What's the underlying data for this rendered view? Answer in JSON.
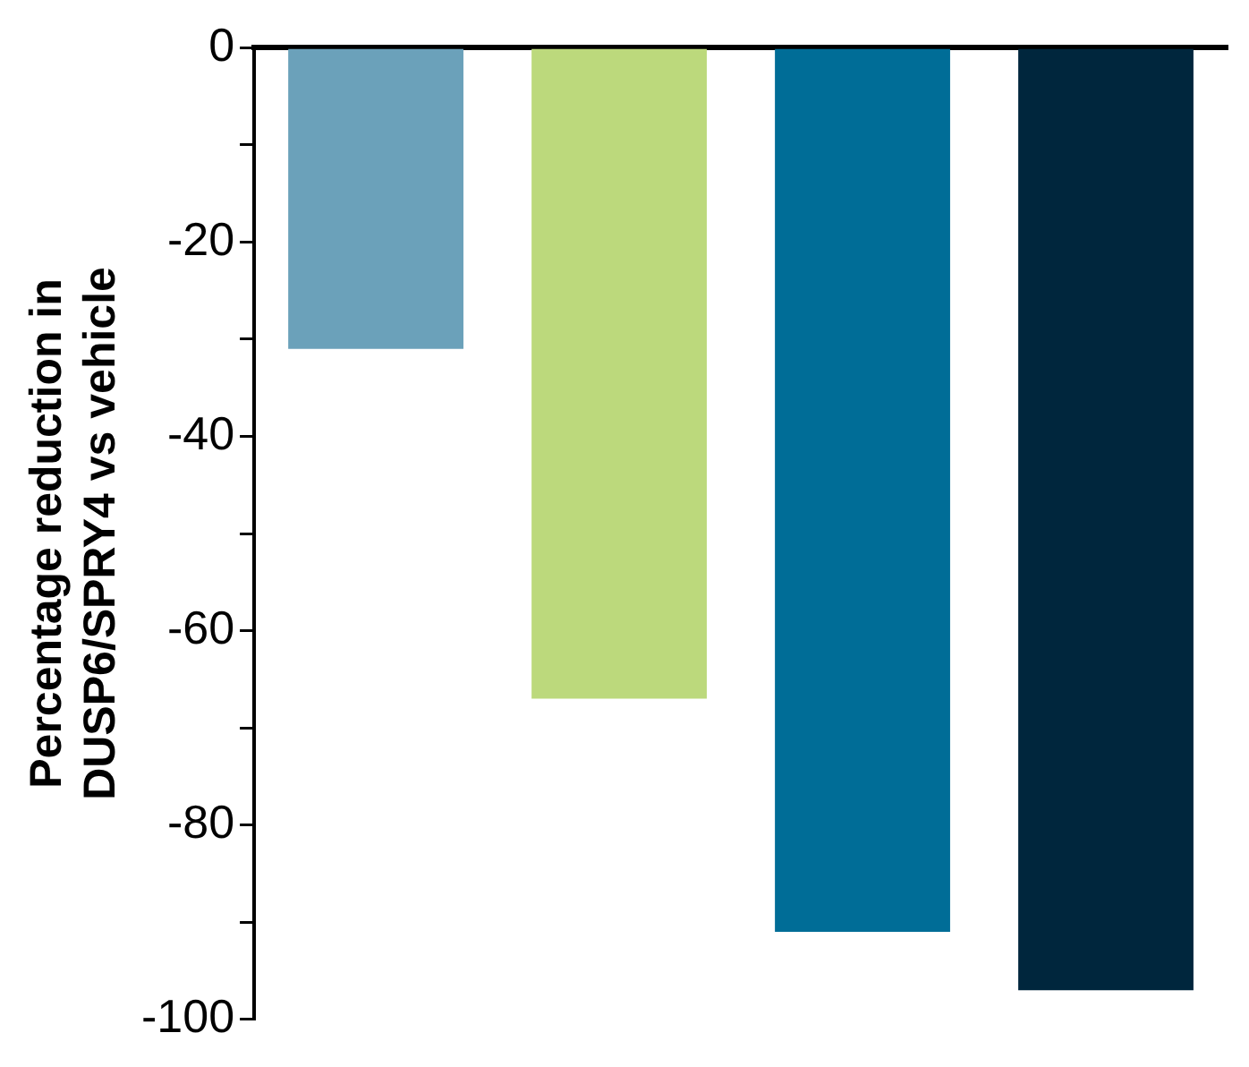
{
  "chart_data": {
    "type": "bar",
    "ylabel": "Percentage reduction in\nDUSP6/SPRY4 vs vehicle",
    "categories": [
      null,
      null,
      null,
      null
    ],
    "values": [
      -31,
      -67,
      -91,
      -97
    ],
    "colors": [
      "#6ba1ba",
      "#bcd97c",
      "#006d97",
      "#00263d"
    ],
    "ylim": [
      -100,
      0
    ],
    "yticks": [
      -100,
      {
        "value": -90,
        "label": null
      },
      -80,
      {
        "value": -70,
        "label": null
      },
      -60,
      {
        "value": -50,
        "label": null
      },
      -40,
      {
        "value": -30,
        "label": null
      },
      -20,
      {
        "value": -10,
        "label": null
      },
      0
    ],
    "tick_labels": "y",
    "grid": false,
    "legend": false
  }
}
